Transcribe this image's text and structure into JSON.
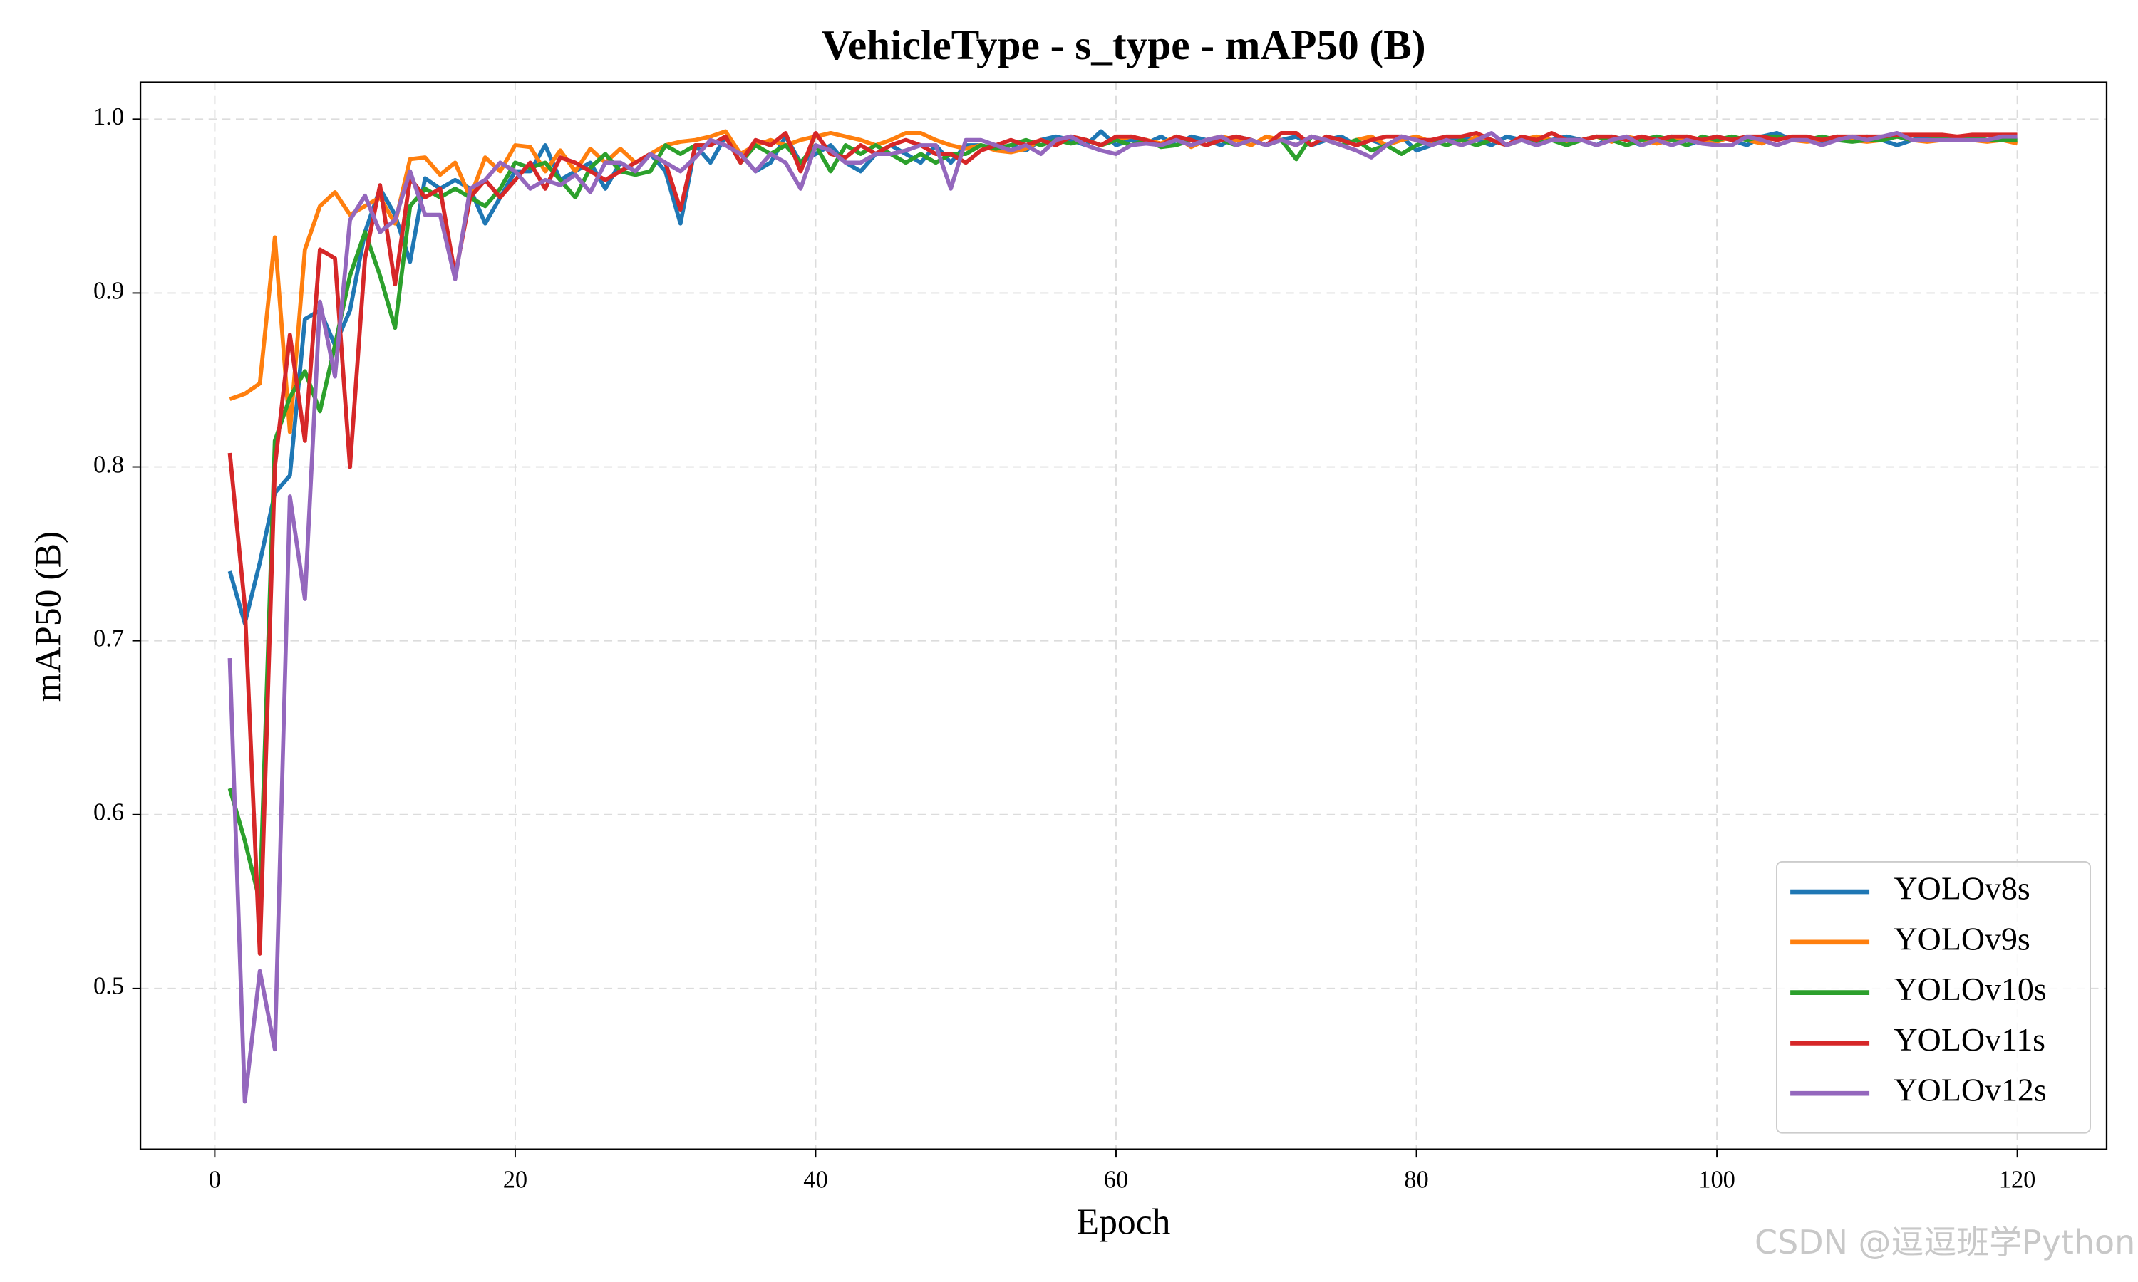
{
  "chart_data": {
    "type": "line",
    "title": "VehicleType - s_type - mAP50 (B)",
    "x_label": "Epoch",
    "y_label": "mAP50 (B)",
    "watermark": "CSDN @逗逗班学Python",
    "grid": true,
    "legend": "lower right",
    "xlim": [
      -4.95,
      125.95
    ],
    "ylim": [
      0.4075,
      1.0212
    ],
    "xticks": [
      0,
      20,
      40,
      60,
      80,
      100,
      120
    ],
    "yticks": [
      0.5,
      0.6,
      0.7,
      0.8,
      0.9,
      {
        "value": 1,
        "label": "1.0"
      }
    ],
    "x": [
      1,
      2,
      3,
      4,
      5,
      6,
      7,
      8,
      9,
      10,
      11,
      12,
      13,
      14,
      15,
      16,
      17,
      18,
      19,
      20,
      21,
      22,
      23,
      24,
      25,
      26,
      27,
      28,
      29,
      30,
      31,
      32,
      33,
      34,
      35,
      36,
      37,
      38,
      39,
      40,
      41,
      42,
      43,
      44,
      45,
      46,
      47,
      48,
      49,
      50,
      51,
      52,
      53,
      54,
      55,
      56,
      57,
      58,
      59,
      60,
      61,
      62,
      63,
      64,
      65,
      66,
      67,
      68,
      69,
      70,
      71,
      72,
      73,
      74,
      75,
      76,
      77,
      78,
      79,
      80,
      81,
      82,
      83,
      84,
      85,
      86,
      87,
      88,
      89,
      90,
      91,
      92,
      93,
      94,
      95,
      96,
      97,
      98,
      99,
      100,
      101,
      102,
      103,
      104,
      105,
      106,
      107,
      108,
      109,
      110,
      111,
      112,
      113,
      114,
      115,
      116,
      117,
      118,
      119,
      120
    ],
    "series": [
      {
        "name": "YOLOv8s",
        "color": "#1f77b4",
        "values": [
          0.74,
          0.71,
          0.745,
          0.785,
          0.795,
          0.885,
          0.89,
          0.87,
          0.89,
          0.935,
          0.96,
          0.945,
          0.918,
          0.966,
          0.96,
          0.965,
          0.96,
          0.94,
          0.955,
          0.97,
          0.97,
          0.985,
          0.965,
          0.97,
          0.975,
          0.96,
          0.975,
          0.97,
          0.98,
          0.97,
          0.94,
          0.985,
          0.975,
          0.99,
          0.98,
          0.97,
          0.975,
          0.99,
          0.975,
          0.98,
          0.985,
          0.975,
          0.97,
          0.98,
          0.985,
          0.98,
          0.975,
          0.985,
          0.975,
          0.985,
          0.985,
          0.983,
          0.985,
          0.982,
          0.988,
          0.99,
          0.988,
          0.985,
          0.993,
          0.985,
          0.988,
          0.986,
          0.99,
          0.985,
          0.99,
          0.988,
          0.985,
          0.99,
          0.988,
          0.985,
          0.988,
          0.99,
          0.985,
          0.988,
          0.99,
          0.985,
          0.988,
          0.985,
          0.99,
          0.982,
          0.985,
          0.988,
          0.99,
          0.988,
          0.985,
          0.99,
          0.988,
          0.985,
          0.988,
          0.99,
          0.988,
          0.985,
          0.99,
          0.988,
          0.985,
          0.988,
          0.99,
          0.985,
          0.988,
          0.99,
          0.988,
          0.985,
          0.99,
          0.992,
          0.988,
          0.988,
          0.987,
          0.99,
          0.988,
          0.99,
          0.988,
          0.985,
          0.988,
          0.99,
          0.988,
          0.988,
          0.989,
          0.988,
          0.988,
          0.988
        ]
      },
      {
        "name": "YOLOv9s",
        "color": "#ff7f0e",
        "values": [
          0.839,
          0.842,
          0.848,
          0.932,
          0.82,
          0.925,
          0.95,
          0.958,
          0.945,
          0.95,
          0.955,
          0.94,
          0.977,
          0.978,
          0.968,
          0.975,
          0.955,
          0.978,
          0.97,
          0.985,
          0.984,
          0.97,
          0.982,
          0.97,
          0.983,
          0.975,
          0.983,
          0.975,
          0.98,
          0.985,
          0.987,
          0.988,
          0.99,
          0.993,
          0.98,
          0.985,
          0.988,
          0.985,
          0.988,
          0.99,
          0.992,
          0.99,
          0.988,
          0.985,
          0.988,
          0.992,
          0.992,
          0.988,
          0.985,
          0.983,
          0.985,
          0.982,
          0.981,
          0.983,
          0.988,
          0.985,
          0.99,
          0.988,
          0.985,
          0.988,
          0.99,
          0.988,
          0.986,
          0.99,
          0.984,
          0.988,
          0.99,
          0.988,
          0.985,
          0.99,
          0.988,
          0.985,
          0.99,
          0.988,
          0.985,
          0.988,
          0.99,
          0.985,
          0.988,
          0.99,
          0.987,
          0.988,
          0.985,
          0.99,
          0.988,
          0.985,
          0.988,
          0.99,
          0.988,
          0.986,
          0.988,
          0.99,
          0.987,
          0.99,
          0.988,
          0.986,
          0.988,
          0.99,
          0.988,
          0.987,
          0.99,
          0.988,
          0.986,
          0.99,
          0.988,
          0.987,
          0.988,
          0.99,
          0.988,
          0.987,
          0.988,
          0.99,
          0.988,
          0.987,
          0.988,
          0.99,
          0.988,
          0.987,
          0.988,
          0.986
        ]
      },
      {
        "name": "YOLOv10s",
        "color": "#2ca02c",
        "values": [
          0.615,
          0.585,
          0.55,
          0.815,
          0.84,
          0.855,
          0.832,
          0.87,
          0.91,
          0.935,
          0.91,
          0.88,
          0.95,
          0.96,
          0.955,
          0.96,
          0.955,
          0.95,
          0.96,
          0.975,
          0.972,
          0.975,
          0.965,
          0.955,
          0.972,
          0.98,
          0.97,
          0.968,
          0.97,
          0.985,
          0.98,
          0.985,
          0.985,
          0.99,
          0.975,
          0.985,
          0.98,
          0.985,
          0.975,
          0.985,
          0.97,
          0.985,
          0.98,
          0.985,
          0.98,
          0.975,
          0.98,
          0.975,
          0.98,
          0.98,
          0.985,
          0.983,
          0.985,
          0.988,
          0.985,
          0.988,
          0.986,
          0.988,
          0.985,
          0.988,
          0.985,
          0.988,
          0.984,
          0.985,
          0.988,
          0.985,
          0.988,
          0.985,
          0.988,
          0.985,
          0.988,
          0.977,
          0.99,
          0.988,
          0.985,
          0.988,
          0.982,
          0.985,
          0.98,
          0.985,
          0.988,
          0.985,
          0.988,
          0.985,
          0.988,
          0.985,
          0.988,
          0.986,
          0.988,
          0.985,
          0.988,
          0.99,
          0.988,
          0.985,
          0.988,
          0.99,
          0.988,
          0.985,
          0.99,
          0.988,
          0.99,
          0.988,
          0.99,
          0.99,
          0.988,
          0.988,
          0.99,
          0.988,
          0.987,
          0.988,
          0.988,
          0.99,
          0.988,
          0.988,
          0.989,
          0.988,
          0.99,
          0.988,
          0.988,
          0.988
        ]
      },
      {
        "name": "YOLOv11s",
        "color": "#d62728",
        "values": [
          0.808,
          0.72,
          0.52,
          0.8,
          0.876,
          0.815,
          0.925,
          0.92,
          0.8,
          0.92,
          0.962,
          0.905,
          0.966,
          0.955,
          0.96,
          0.91,
          0.955,
          0.965,
          0.955,
          0.965,
          0.975,
          0.96,
          0.978,
          0.975,
          0.97,
          0.965,
          0.97,
          0.975,
          0.98,
          0.975,
          0.948,
          0.985,
          0.985,
          0.99,
          0.975,
          0.988,
          0.985,
          0.992,
          0.97,
          0.992,
          0.98,
          0.978,
          0.985,
          0.98,
          0.985,
          0.988,
          0.985,
          0.98,
          0.98,
          0.975,
          0.982,
          0.985,
          0.988,
          0.985,
          0.988,
          0.985,
          0.99,
          0.988,
          0.985,
          0.99,
          0.99,
          0.988,
          0.985,
          0.99,
          0.988,
          0.985,
          0.988,
          0.99,
          0.988,
          0.985,
          0.992,
          0.992,
          0.985,
          0.99,
          0.988,
          0.985,
          0.988,
          0.99,
          0.99,
          0.988,
          0.988,
          0.99,
          0.99,
          0.992,
          0.988,
          0.985,
          0.99,
          0.988,
          0.992,
          0.988,
          0.988,
          0.99,
          0.99,
          0.988,
          0.99,
          0.988,
          0.99,
          0.99,
          0.988,
          0.99,
          0.988,
          0.99,
          0.99,
          0.988,
          0.99,
          0.99,
          0.988,
          0.99,
          0.99,
          0.99,
          0.99,
          0.991,
          0.991,
          0.991,
          0.991,
          0.99,
          0.991,
          0.991,
          0.991,
          0.991
        ]
      },
      {
        "name": "YOLOv12s",
        "color": "#9467bd",
        "values": [
          0.69,
          0.435,
          0.51,
          0.465,
          0.783,
          0.724,
          0.895,
          0.852,
          0.942,
          0.956,
          0.935,
          0.942,
          0.97,
          0.945,
          0.945,
          0.908,
          0.96,
          0.965,
          0.975,
          0.97,
          0.96,
          0.965,
          0.962,
          0.968,
          0.958,
          0.975,
          0.975,
          0.97,
          0.98,
          0.975,
          0.97,
          0.978,
          0.988,
          0.985,
          0.98,
          0.97,
          0.98,
          0.975,
          0.96,
          0.985,
          0.982,
          0.975,
          0.975,
          0.98,
          0.98,
          0.982,
          0.985,
          0.985,
          0.96,
          0.988,
          0.988,
          0.985,
          0.982,
          0.985,
          0.98,
          0.988,
          0.99,
          0.985,
          0.982,
          0.98,
          0.985,
          0.986,
          0.985,
          0.988,
          0.985,
          0.988,
          0.99,
          0.985,
          0.988,
          0.985,
          0.988,
          0.985,
          0.99,
          0.988,
          0.985,
          0.982,
          0.978,
          0.985,
          0.99,
          0.988,
          0.985,
          0.988,
          0.985,
          0.988,
          0.992,
          0.985,
          0.988,
          0.985,
          0.988,
          0.988,
          0.988,
          0.985,
          0.988,
          0.99,
          0.985,
          0.988,
          0.985,
          0.988,
          0.986,
          0.985,
          0.985,
          0.99,
          0.988,
          0.985,
          0.988,
          0.988,
          0.985,
          0.988,
          0.99,
          0.988,
          0.99,
          0.992,
          0.988,
          0.988,
          0.988,
          0.988,
          0.988,
          0.988,
          0.99,
          0.99
        ]
      }
    ]
  }
}
